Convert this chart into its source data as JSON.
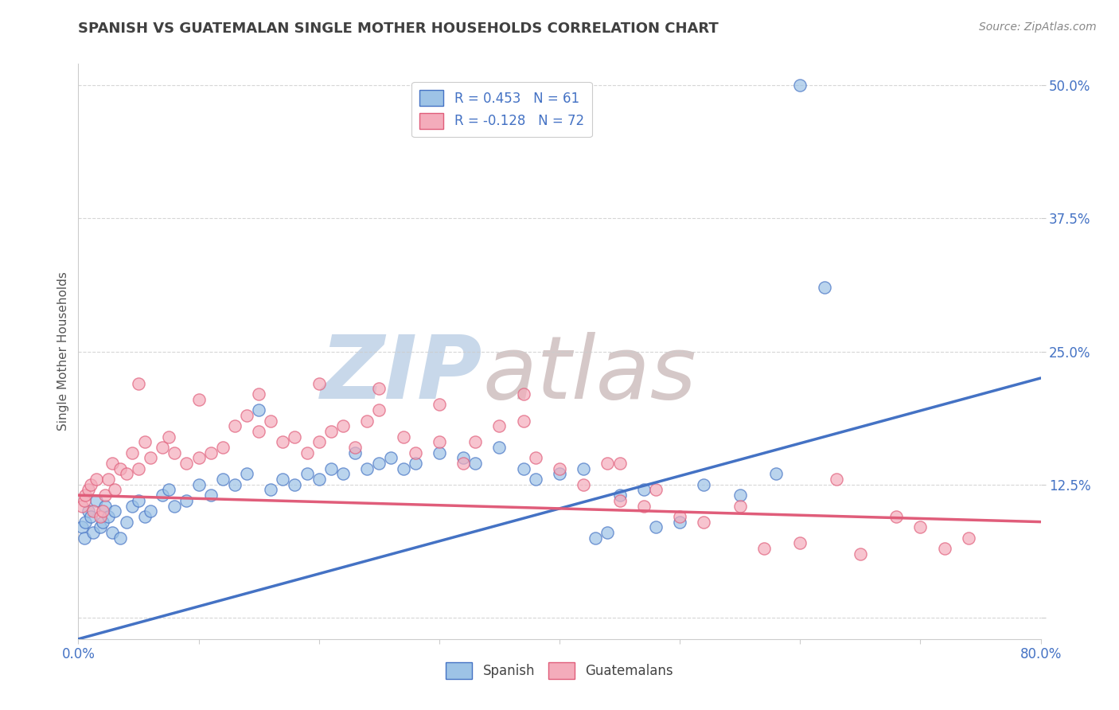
{
  "title": "SPANISH VS GUATEMALAN SINGLE MOTHER HOUSEHOLDS CORRELATION CHART",
  "source": "Source: ZipAtlas.com",
  "ylabel": "Single Mother Households",
  "xlim": [
    0.0,
    80.0
  ],
  "ylim": [
    -2.0,
    52.0
  ],
  "yticks": [
    0.0,
    12.5,
    25.0,
    37.5,
    50.0
  ],
  "ytick_labels": [
    "",
    "12.5%",
    "25.0%",
    "37.5%",
    "50.0%"
  ],
  "blue_scatter": [
    [
      0.3,
      8.5
    ],
    [
      0.5,
      7.5
    ],
    [
      0.6,
      9.0
    ],
    [
      0.8,
      10.0
    ],
    [
      1.0,
      9.5
    ],
    [
      1.2,
      8.0
    ],
    [
      1.5,
      11.0
    ],
    [
      1.8,
      8.5
    ],
    [
      2.0,
      9.0
    ],
    [
      2.2,
      10.5
    ],
    [
      2.5,
      9.5
    ],
    [
      2.8,
      8.0
    ],
    [
      3.0,
      10.0
    ],
    [
      3.5,
      7.5
    ],
    [
      4.0,
      9.0
    ],
    [
      4.5,
      10.5
    ],
    [
      5.0,
      11.0
    ],
    [
      5.5,
      9.5
    ],
    [
      6.0,
      10.0
    ],
    [
      7.0,
      11.5
    ],
    [
      7.5,
      12.0
    ],
    [
      8.0,
      10.5
    ],
    [
      9.0,
      11.0
    ],
    [
      10.0,
      12.5
    ],
    [
      11.0,
      11.5
    ],
    [
      12.0,
      13.0
    ],
    [
      13.0,
      12.5
    ],
    [
      14.0,
      13.5
    ],
    [
      15.0,
      19.5
    ],
    [
      16.0,
      12.0
    ],
    [
      17.0,
      13.0
    ],
    [
      18.0,
      12.5
    ],
    [
      19.0,
      13.5
    ],
    [
      20.0,
      13.0
    ],
    [
      21.0,
      14.0
    ],
    [
      22.0,
      13.5
    ],
    [
      23.0,
      15.5
    ],
    [
      24.0,
      14.0
    ],
    [
      25.0,
      14.5
    ],
    [
      26.0,
      15.0
    ],
    [
      27.0,
      14.0
    ],
    [
      28.0,
      14.5
    ],
    [
      30.0,
      15.5
    ],
    [
      32.0,
      15.0
    ],
    [
      33.0,
      14.5
    ],
    [
      35.0,
      16.0
    ],
    [
      37.0,
      14.0
    ],
    [
      38.0,
      13.0
    ],
    [
      40.0,
      13.5
    ],
    [
      42.0,
      14.0
    ],
    [
      43.0,
      7.5
    ],
    [
      44.0,
      8.0
    ],
    [
      45.0,
      11.5
    ],
    [
      47.0,
      12.0
    ],
    [
      48.0,
      8.5
    ],
    [
      50.0,
      9.0
    ],
    [
      52.0,
      12.5
    ],
    [
      55.0,
      11.5
    ],
    [
      58.0,
      13.5
    ],
    [
      60.0,
      50.0
    ],
    [
      62.0,
      31.0
    ]
  ],
  "pink_scatter": [
    [
      0.3,
      10.5
    ],
    [
      0.5,
      11.0
    ],
    [
      0.6,
      11.5
    ],
    [
      0.8,
      12.0
    ],
    [
      1.0,
      12.5
    ],
    [
      1.2,
      10.0
    ],
    [
      1.5,
      13.0
    ],
    [
      1.8,
      9.5
    ],
    [
      2.0,
      10.0
    ],
    [
      2.2,
      11.5
    ],
    [
      2.5,
      13.0
    ],
    [
      2.8,
      14.5
    ],
    [
      3.0,
      12.0
    ],
    [
      3.5,
      14.0
    ],
    [
      4.0,
      13.5
    ],
    [
      4.5,
      15.5
    ],
    [
      5.0,
      14.0
    ],
    [
      5.5,
      16.5
    ],
    [
      6.0,
      15.0
    ],
    [
      7.0,
      16.0
    ],
    [
      7.5,
      17.0
    ],
    [
      8.0,
      15.5
    ],
    [
      9.0,
      14.5
    ],
    [
      10.0,
      15.0
    ],
    [
      11.0,
      15.5
    ],
    [
      12.0,
      16.0
    ],
    [
      13.0,
      18.0
    ],
    [
      14.0,
      19.0
    ],
    [
      15.0,
      17.5
    ],
    [
      16.0,
      18.5
    ],
    [
      17.0,
      16.5
    ],
    [
      18.0,
      17.0
    ],
    [
      19.0,
      15.5
    ],
    [
      20.0,
      16.5
    ],
    [
      21.0,
      17.5
    ],
    [
      22.0,
      18.0
    ],
    [
      23.0,
      16.0
    ],
    [
      24.0,
      18.5
    ],
    [
      25.0,
      19.5
    ],
    [
      27.0,
      17.0
    ],
    [
      28.0,
      15.5
    ],
    [
      30.0,
      16.5
    ],
    [
      32.0,
      14.5
    ],
    [
      33.0,
      16.5
    ],
    [
      35.0,
      18.0
    ],
    [
      37.0,
      18.5
    ],
    [
      38.0,
      15.0
    ],
    [
      40.0,
      14.0
    ],
    [
      42.0,
      12.5
    ],
    [
      44.0,
      14.5
    ],
    [
      45.0,
      11.0
    ],
    [
      47.0,
      10.5
    ],
    [
      48.0,
      12.0
    ],
    [
      50.0,
      9.5
    ],
    [
      52.0,
      9.0
    ],
    [
      55.0,
      10.5
    ],
    [
      57.0,
      6.5
    ],
    [
      60.0,
      7.0
    ],
    [
      63.0,
      13.0
    ],
    [
      65.0,
      6.0
    ],
    [
      68.0,
      9.5
    ],
    [
      70.0,
      8.5
    ],
    [
      72.0,
      6.5
    ],
    [
      74.0,
      7.5
    ],
    [
      5.0,
      22.0
    ],
    [
      10.0,
      20.5
    ],
    [
      15.0,
      21.0
    ],
    [
      20.0,
      22.0
    ],
    [
      25.0,
      21.5
    ],
    [
      30.0,
      20.0
    ],
    [
      37.0,
      21.0
    ],
    [
      45.0,
      14.5
    ]
  ],
  "blue_line_x": [
    0.0,
    80.0
  ],
  "blue_line_y": [
    -2.0,
    22.5
  ],
  "pink_line_x": [
    0.0,
    80.0
  ],
  "pink_line_y": [
    11.5,
    9.0
  ],
  "blue_color": "#4472c4",
  "pink_color": "#e05d7a",
  "blue_scatter_color": "#9dc3e6",
  "pink_scatter_color": "#f4acbb",
  "watermark": "ZIPatlas",
  "watermark_zip_color": "#c8d8ea",
  "watermark_atlas_color": "#d5c8c8",
  "background_color": "#ffffff",
  "grid_color": "#cccccc",
  "title_color": "#404040",
  "axis_label_color": "#555555",
  "tick_color": "#4472c4",
  "source_color": "#888888"
}
